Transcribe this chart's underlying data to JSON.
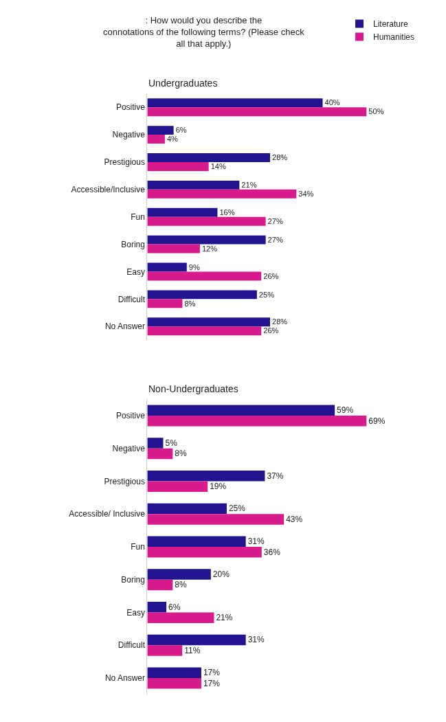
{
  "chart_data": [
    {
      "type": "bar",
      "orientation": "horizontal",
      "title": ": How would you describe the\nconnotations of the following terms? (Please check\nall that apply.)",
      "subtitle": "Undergraduates",
      "categories": [
        "Positive",
        "Negative",
        "Prestigious",
        "Accessible/Inclusive",
        "Fun",
        "Boring",
        "Easy",
        "Difficult",
        "No Answer"
      ],
      "series": [
        {
          "name": "Literature",
          "color": "#22148f",
          "values": [
            40,
            6,
            28,
            21,
            16,
            27,
            9,
            25,
            28
          ],
          "value_labels": [
            "40%",
            "6%",
            "28%",
            "21%",
            "16%",
            "27%",
            "9%",
            "25%",
            "28%"
          ]
        },
        {
          "name": "Humanities",
          "color": "#d91a8c",
          "values": [
            50,
            4,
            14,
            34,
            27,
            12,
            26,
            8,
            26
          ],
          "value_labels": [
            "50%",
            "4%",
            "14%",
            "34%",
            "27%",
            "12%",
            "26%",
            "8%",
            "26%"
          ]
        }
      ],
      "legend": "top right",
      "tick_labels": "y"
    },
    {
      "type": "bar",
      "orientation": "horizontal",
      "title": "Non-Undergraduates",
      "categories": [
        "Positive",
        "Negative",
        "Prestigious",
        "Accessible/ Inclusive",
        "Fun",
        "Boring",
        "Easy",
        "Difficult",
        "No Answer"
      ],
      "series": [
        {
          "color": "#22148f",
          "values": [
            59,
            5,
            37,
            25,
            31,
            20,
            6,
            31,
            17
          ],
          "value_labels": [
            "59%",
            "5%",
            "37%",
            "25%",
            "31%",
            "20%",
            "6%",
            "31%",
            "17%"
          ]
        },
        {
          "color": "#d91a8c",
          "values": [
            69,
            8,
            19,
            43,
            36,
            8,
            21,
            11,
            17
          ],
          "value_labels": [
            "69%",
            "8%",
            "19%",
            "43%",
            "36%",
            "8%",
            "21%",
            "11%",
            "17%"
          ]
        }
      ],
      "tick_labels": "y"
    }
  ]
}
